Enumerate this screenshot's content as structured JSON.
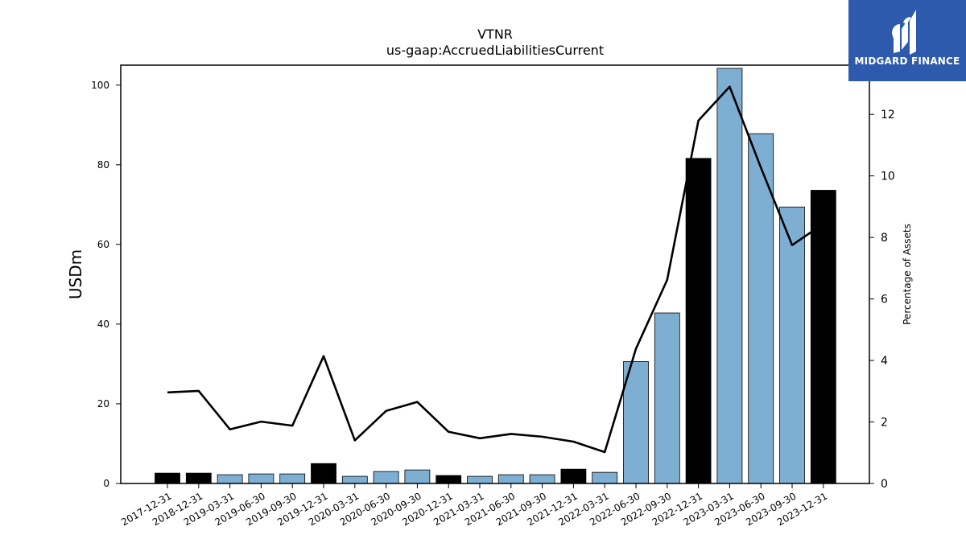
{
  "chart_data": {
    "type": "bar+line",
    "title": "VTNR",
    "subtitle": "us-gaap:AccruedLiabilitiesCurrent",
    "ylabel": "USDm",
    "y2label": "Percentage of Assets",
    "ylim": [
      0,
      105
    ],
    "y2lim": [
      0,
      13.6
    ],
    "yticks": [
      0,
      20,
      40,
      60,
      80,
      100
    ],
    "y2ticks": [
      0,
      2,
      4,
      6,
      8,
      10,
      12
    ],
    "grid": false,
    "categories": [
      "2017-12-31",
      "2018-12-31",
      "2019-03-31",
      "2019-06-30",
      "2019-09-30",
      "2019-12-31",
      "2020-03-31",
      "2020-06-30",
      "2020-09-30",
      "2020-12-31",
      "2021-03-31",
      "2021-06-30",
      "2021-09-30",
      "2021-12-31",
      "2022-03-31",
      "2022-06-30",
      "2022-09-30",
      "2022-12-31",
      "2023-03-31",
      "2023-06-30",
      "2023-09-30",
      "2023-12-31"
    ],
    "bars": {
      "values": [
        2.6,
        2.6,
        2.2,
        2.4,
        2.4,
        5.0,
        1.8,
        3.0,
        3.4,
        2.0,
        1.8,
        2.2,
        2.2,
        3.6,
        2.8,
        30.6,
        42.8,
        81.6,
        104.2,
        87.8,
        69.4,
        73.6
      ],
      "annual_color": "#000000",
      "quarterly_color": "#7eafd3",
      "annual_flags": [
        true,
        true,
        false,
        false,
        false,
        true,
        false,
        false,
        false,
        true,
        false,
        false,
        false,
        true,
        false,
        false,
        false,
        true,
        false,
        false,
        false,
        true
      ]
    },
    "series": [
      {
        "axis": "right",
        "color": "#000000",
        "values": [
          2.96,
          3.01,
          1.76,
          2.01,
          1.88,
          4.14,
          1.4,
          2.36,
          2.65,
          1.68,
          1.47,
          1.61,
          1.52,
          1.36,
          1.02,
          4.38,
          6.62,
          11.8,
          12.9,
          10.27,
          7.75,
          8.44
        ]
      }
    ]
  },
  "logo": {
    "text": "MIDGARD FINANCE",
    "bg_color": "#2d5aac",
    "mark": "midgard-logo-icon"
  }
}
